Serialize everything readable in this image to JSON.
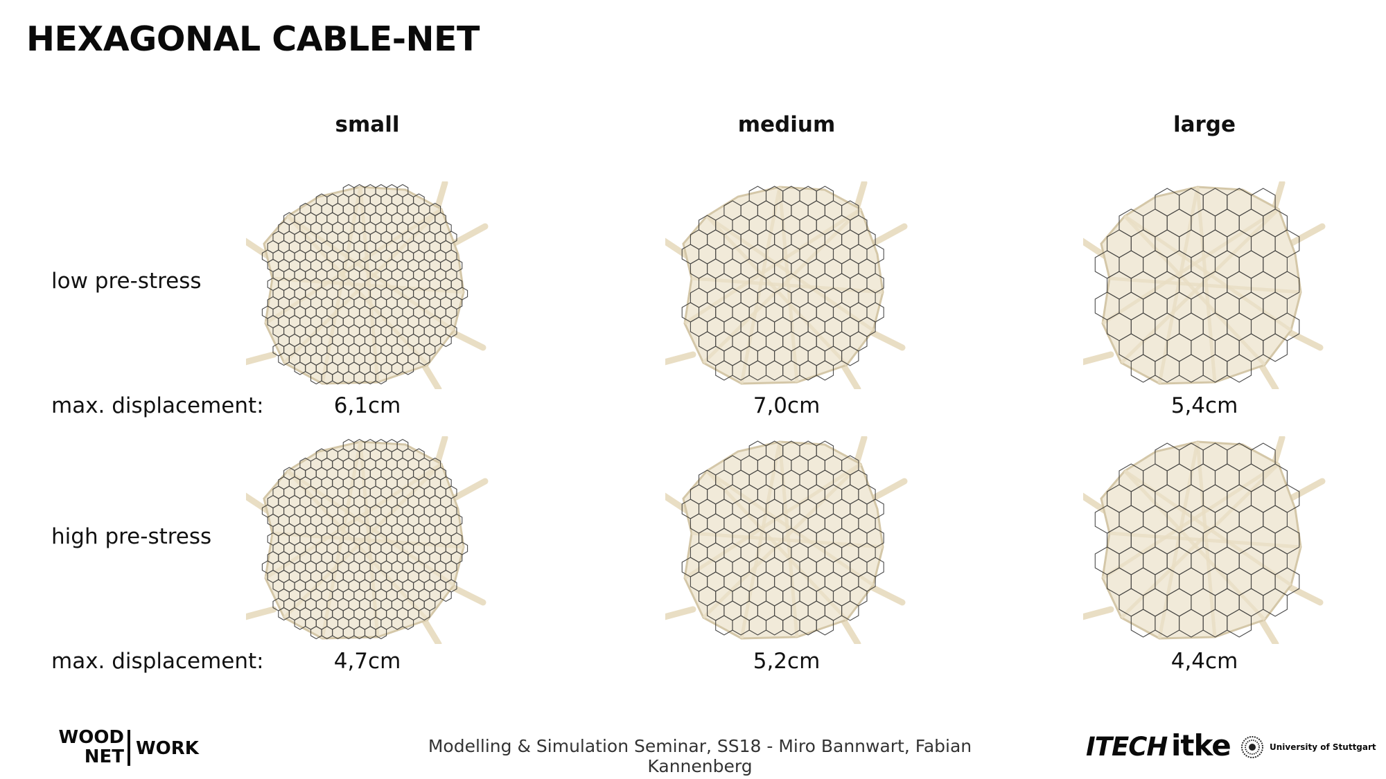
{
  "title": "HEXAGONAL CABLE-NET",
  "columns": [
    "small",
    "medium",
    "large"
  ],
  "rows": [
    {
      "label": "low pre-stress",
      "displacement_label": "max. displacement:",
      "values": [
        "6,1cm",
        "7,0cm",
        "5,4cm"
      ]
    },
    {
      "label": "high pre-stress",
      "displacement_label": "max. displacement:",
      "values": [
        "4,7cm",
        "5,2cm",
        "4,4cm"
      ]
    }
  ],
  "colors": {
    "net_fill": "#f1ead9",
    "net_strut": "#e9dec4",
    "net_outline": "#d4c7a8",
    "cable": "#2b2b2b",
    "text": "#111111"
  },
  "footer": {
    "caption": "Modelling & Simulation Seminar, SS18 - Miro Bannwart, Fabian Kannenberg",
    "woodnet": {
      "line1": "WOOD",
      "line2": "NET",
      "right": "WORK"
    },
    "itech": "ITECH",
    "itke": "itke",
    "university": "University of Stuttgart"
  }
}
